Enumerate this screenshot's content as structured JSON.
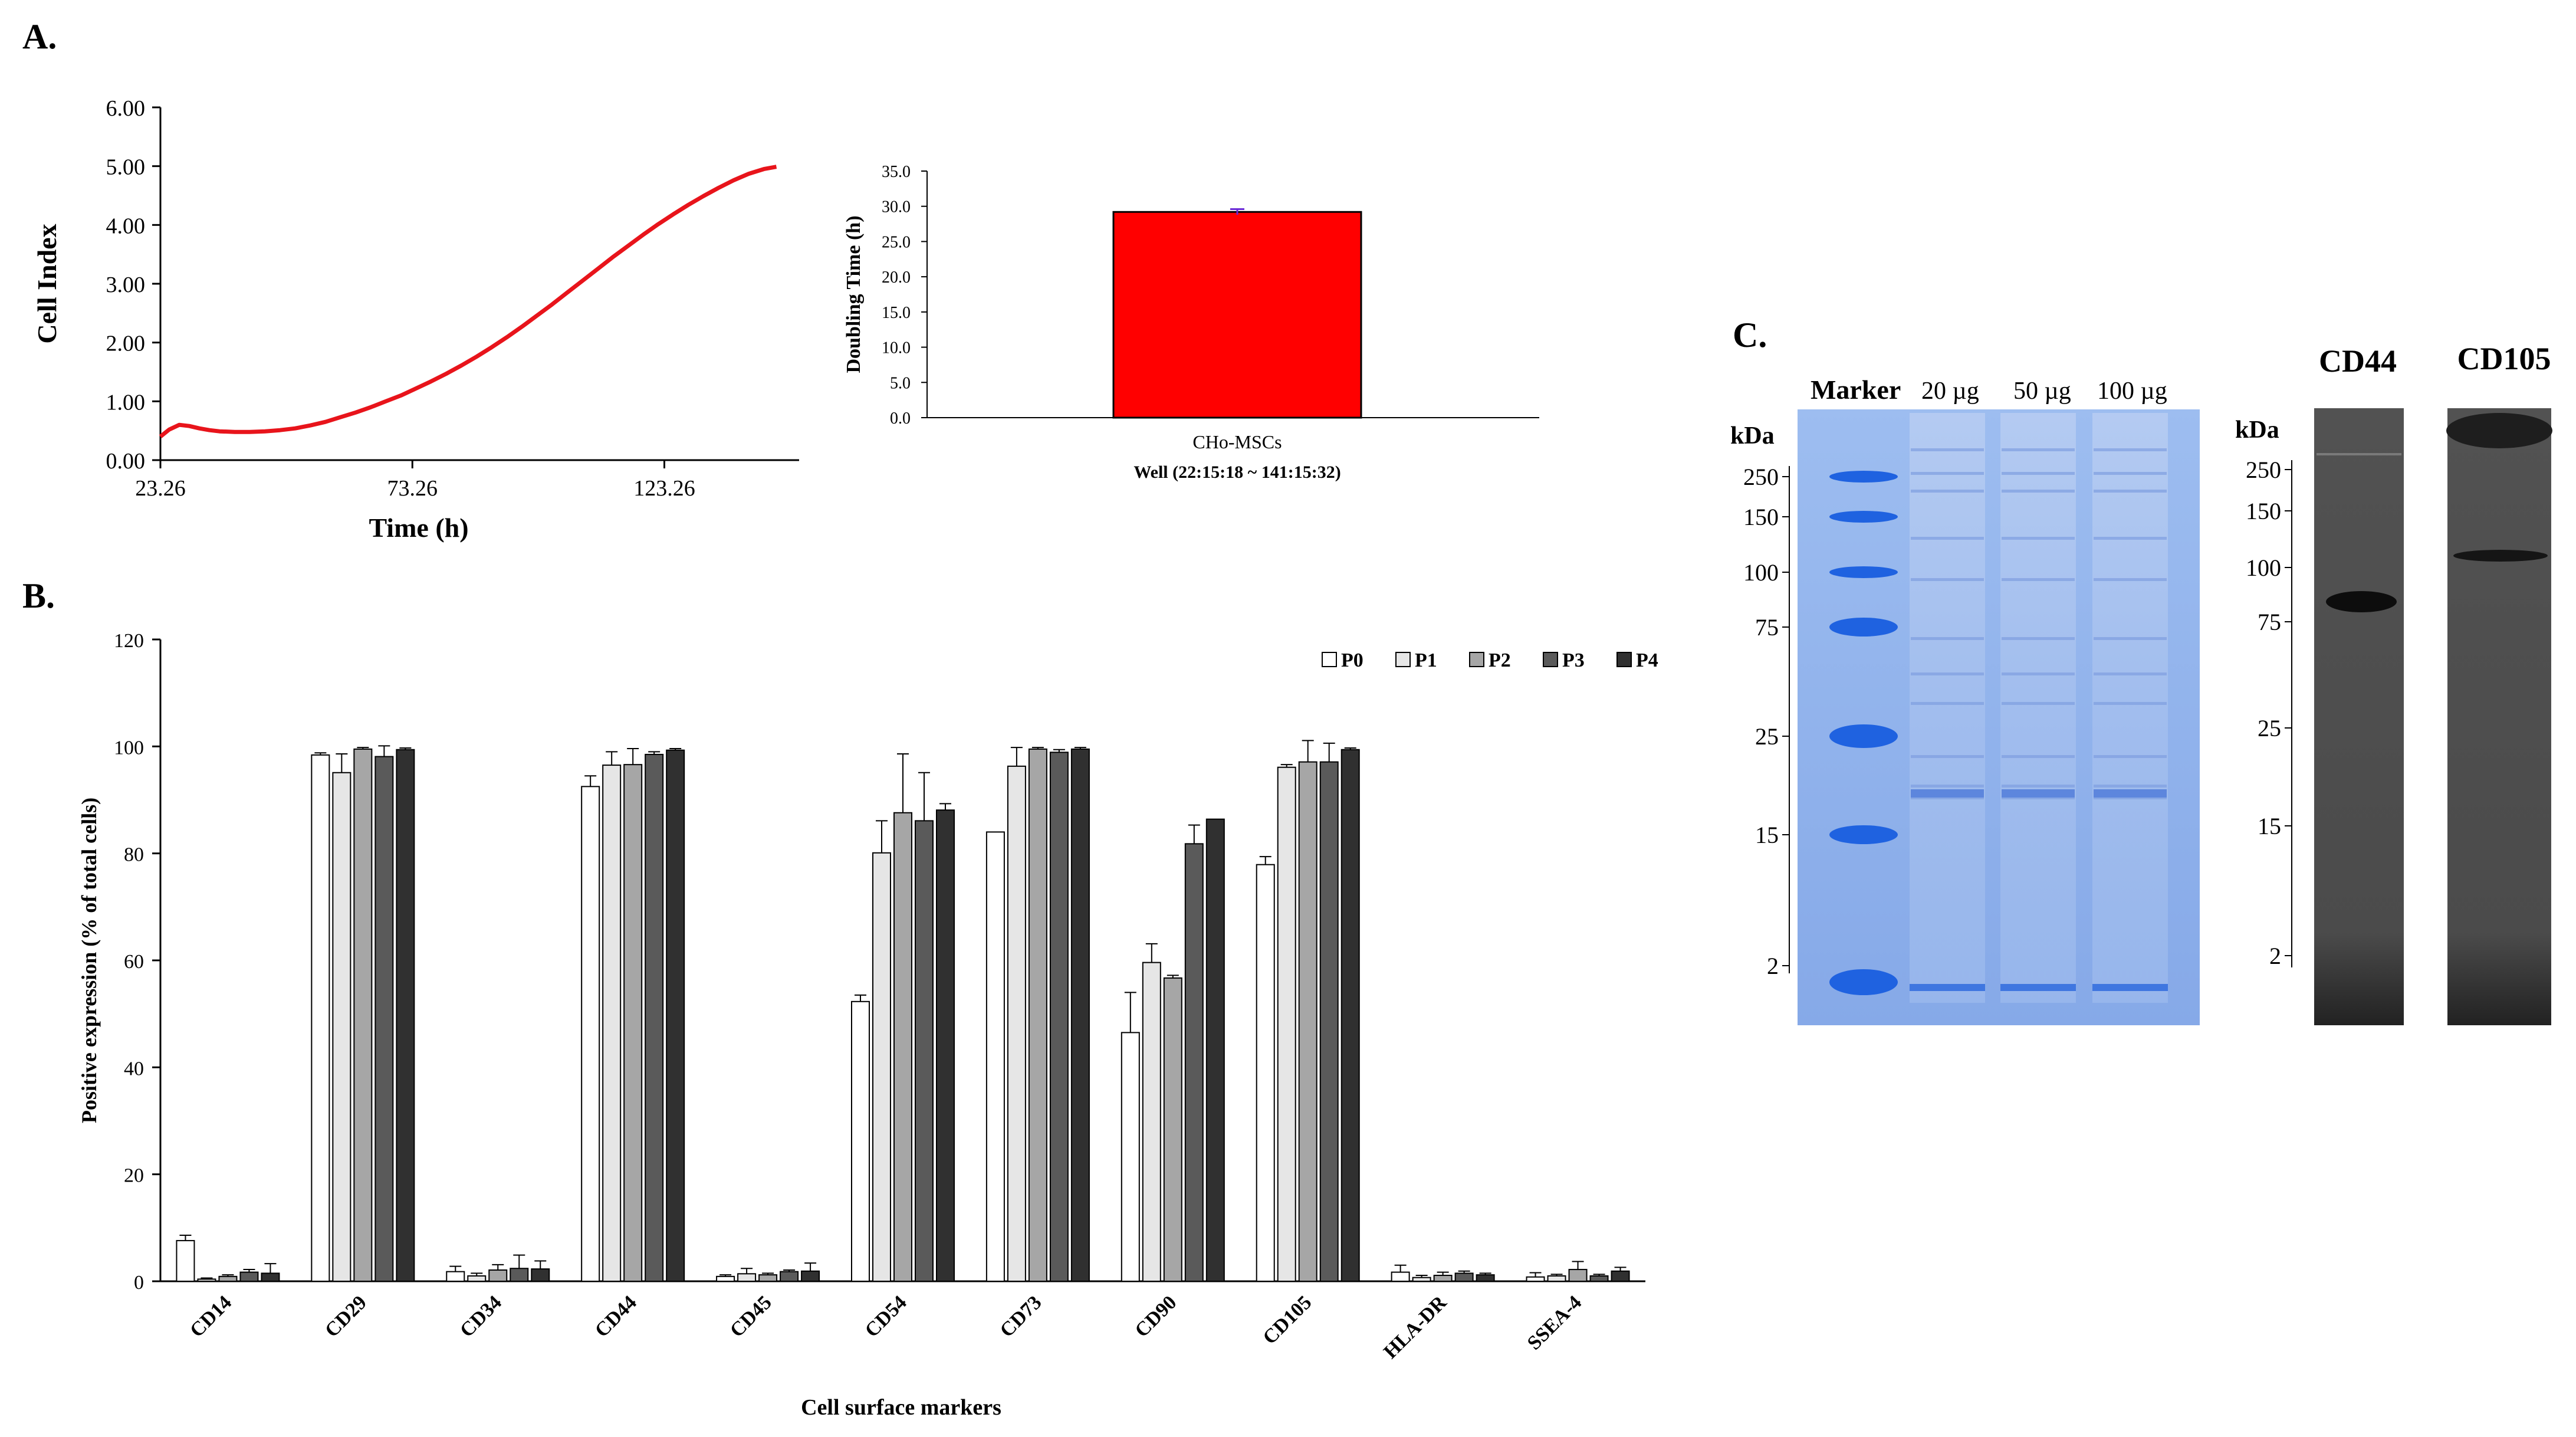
{
  "panel_labels": {
    "a": "A.",
    "b": "B.",
    "c": "C."
  },
  "colors": {
    "growth_line": "#e8141b",
    "bar_red": "#ff0000",
    "gel_blue": "#8fb2ec",
    "band_blue": "#1f62e0",
    "blot_bg": "#4d4d4d"
  },
  "chart_data": [
    {
      "id": "cell-index",
      "type": "line",
      "ylabel": "Cell Index",
      "xlabel": "Time (h)",
      "ylim": [
        0,
        6
      ],
      "xlim": [
        23.26,
        150
      ],
      "yticks": [
        "0.00",
        "1.00",
        "2.00",
        "3.00",
        "4.00",
        "5.00",
        "6.00"
      ],
      "xticks": [
        {
          "value": 23.26,
          "label": "23.26"
        },
        {
          "value": 73.26,
          "label": "73.26"
        },
        {
          "value": 123.26,
          "label": "123.26"
        }
      ],
      "series": [
        {
          "name": "Cell Index",
          "x": [
            23.26,
            25,
            27,
            29,
            31,
            33,
            35,
            38,
            41,
            44,
            47,
            50,
            53,
            56,
            59,
            62,
            65,
            68,
            71,
            74,
            77,
            80,
            83,
            86,
            89,
            92,
            95,
            98,
            101,
            104,
            107,
            110,
            113,
            116,
            119,
            122,
            125,
            128,
            131,
            134,
            137,
            140,
            143,
            145.5
          ],
          "y": [
            0.4,
            0.52,
            0.6,
            0.58,
            0.54,
            0.51,
            0.49,
            0.48,
            0.48,
            0.49,
            0.51,
            0.54,
            0.59,
            0.65,
            0.73,
            0.81,
            0.9,
            1.0,
            1.1,
            1.22,
            1.34,
            1.47,
            1.61,
            1.76,
            1.92,
            2.09,
            2.27,
            2.46,
            2.65,
            2.85,
            3.05,
            3.25,
            3.45,
            3.64,
            3.83,
            4.01,
            4.18,
            4.34,
            4.49,
            4.63,
            4.76,
            4.87,
            4.95,
            4.99
          ]
        }
      ]
    },
    {
      "id": "doubling-time",
      "type": "bar",
      "ylabel": "Doubling Time (h)",
      "ylim": [
        0,
        35
      ],
      "yticks": [
        "0.0",
        "5.0",
        "10.0",
        "15.0",
        "20.0",
        "25.0",
        "30.0",
        "35.0"
      ],
      "categories": [
        "CHo-MSCs"
      ],
      "values": [
        29.2
      ],
      "error": [
        0.4
      ],
      "subtitle": "Well (22:15:18 ~ 141:15:32)"
    },
    {
      "id": "surface-markers",
      "type": "bar",
      "xlabel": "Cell surface markers",
      "ylabel": "Positive expression (% of total cells)",
      "ylim": [
        0,
        120
      ],
      "yticks": [
        "0",
        "20",
        "40",
        "60",
        "80",
        "100",
        "120"
      ],
      "categories": [
        "CD14",
        "CD29",
        "CD34",
        "CD44",
        "CD45",
        "CD54",
        "CD73",
        "CD90",
        "CD105",
        "HLA-DR",
        "SSEA-4"
      ],
      "legend_position": "top-right",
      "series": [
        {
          "name": "P0",
          "color": "#ffffff",
          "values": [
            7.6,
            98.4,
            1.8,
            92.5,
            0.9,
            52.3,
            84.0,
            46.5,
            77.9,
            1.7,
            0.8
          ],
          "error": [
            1.0,
            0.4,
            1.0,
            2.0,
            0.3,
            1.2,
            0.0,
            7.5,
            1.5,
            1.3,
            0.8
          ]
        },
        {
          "name": "P1",
          "color": "#e6e6e6",
          "values": [
            0.4,
            95.1,
            1.0,
            96.5,
            1.4,
            80.1,
            96.3,
            59.6,
            96.1,
            0.7,
            1.0
          ],
          "error": [
            0.2,
            3.5,
            0.5,
            2.5,
            1.0,
            6.0,
            3.5,
            3.5,
            0.5,
            0.4,
            0.3
          ]
        },
        {
          "name": "P2",
          "color": "#a6a6a6",
          "values": [
            0.9,
            99.5,
            2.1,
            96.6,
            1.2,
            87.6,
            99.5,
            56.7,
            97.1,
            1.1,
            2.2
          ],
          "error": [
            0.3,
            0.3,
            1.0,
            3.0,
            0.3,
            11.0,
            0.3,
            0.5,
            4.0,
            0.6,
            1.5
          ]
        },
        {
          "name": "P3",
          "color": "#5a5a5a",
          "values": [
            1.7,
            98.1,
            2.4,
            98.5,
            1.8,
            86.1,
            98.9,
            81.8,
            97.1,
            1.5,
            1.0
          ],
          "error": [
            0.5,
            2.0,
            2.5,
            0.5,
            0.3,
            9.0,
            0.5,
            3.5,
            3.5,
            0.4,
            0.3
          ]
        },
        {
          "name": "P4",
          "color": "#303030",
          "values": [
            1.5,
            99.4,
            2.3,
            99.3,
            1.9,
            88.1,
            99.5,
            86.4,
            99.4,
            1.2,
            1.9
          ],
          "error": [
            1.8,
            0.3,
            1.5,
            0.3,
            1.5,
            1.2,
            0.3,
            0.0,
            0.3,
            0.3,
            0.7
          ]
        }
      ]
    }
  ],
  "gel": {
    "header": [
      "Marker",
      "20 µg",
      "50 µg",
      "100 µg"
    ],
    "unit": "kDa",
    "ladder": [
      "250",
      "150",
      "100",
      "75",
      "25",
      "15",
      "2"
    ]
  },
  "blot": {
    "labels": [
      "CD44",
      "CD105"
    ],
    "unit": "kDa",
    "ladder": [
      "250",
      "150",
      "100",
      "75",
      "25",
      "15",
      "2"
    ]
  }
}
